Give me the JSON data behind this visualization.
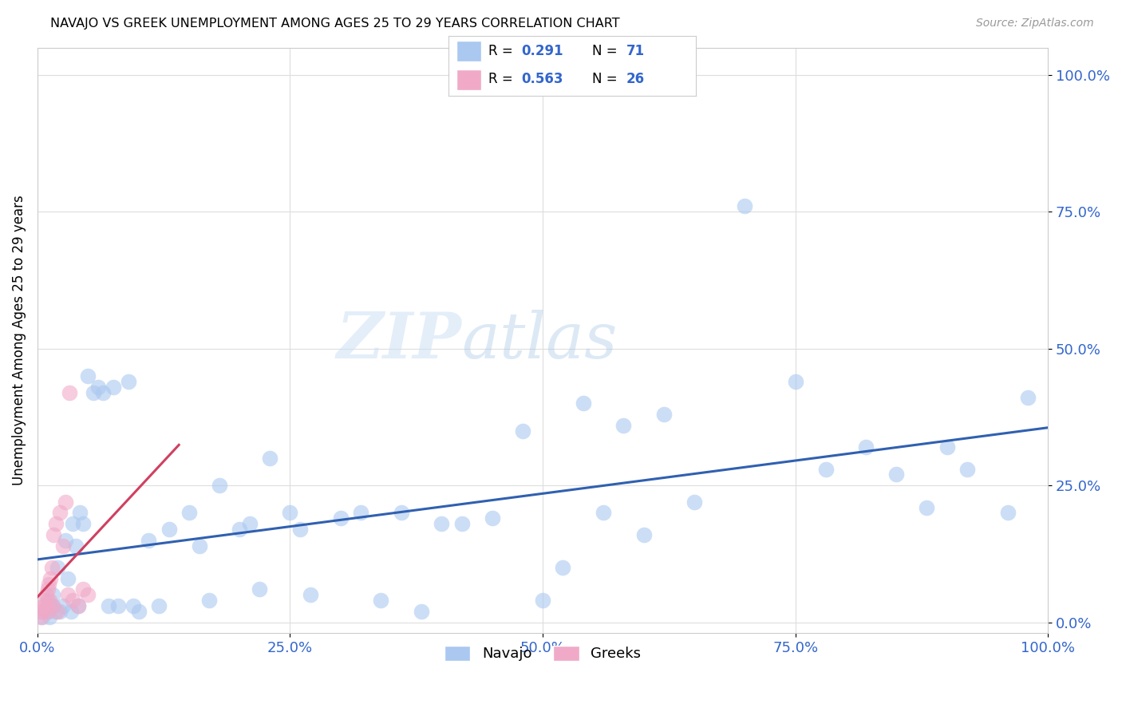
{
  "title": "NAVAJO VS GREEK UNEMPLOYMENT AMONG AGES 25 TO 29 YEARS CORRELATION CHART",
  "source": "Source: ZipAtlas.com",
  "ylabel": "Unemployment Among Ages 25 to 29 years",
  "xlim": [
    0.0,
    1.0
  ],
  "ylim": [
    -0.02,
    1.05
  ],
  "xticks": [
    0.0,
    0.25,
    0.5,
    0.75,
    1.0
  ],
  "yticks": [
    0.0,
    0.25,
    0.5,
    0.75,
    1.0
  ],
  "xtick_labels": [
    "0.0%",
    "25.0%",
    "50.0%",
    "75.0%",
    "100.0%"
  ],
  "ytick_labels": [
    "0.0%",
    "25.0%",
    "50.0%",
    "75.0%",
    "100.0%"
  ],
  "navajo_R": 0.291,
  "navajo_N": 71,
  "greek_R": 0.563,
  "greek_N": 26,
  "navajo_color": "#aac8f0",
  "greek_color": "#f0aac8",
  "navajo_line_color": "#3060b0",
  "greek_line_color": "#d04060",
  "watermark_zip": "ZIP",
  "watermark_atlas": "atlas",
  "navajo_x": [
    0.005,
    0.008,
    0.01,
    0.01,
    0.012,
    0.013,
    0.015,
    0.015,
    0.018,
    0.02,
    0.022,
    0.025,
    0.028,
    0.03,
    0.033,
    0.035,
    0.038,
    0.04,
    0.042,
    0.045,
    0.05,
    0.055,
    0.06,
    0.065,
    0.07,
    0.075,
    0.08,
    0.09,
    0.095,
    0.1,
    0.11,
    0.12,
    0.13,
    0.15,
    0.16,
    0.17,
    0.18,
    0.2,
    0.21,
    0.22,
    0.23,
    0.25,
    0.26,
    0.27,
    0.3,
    0.32,
    0.34,
    0.36,
    0.38,
    0.4,
    0.42,
    0.45,
    0.48,
    0.5,
    0.52,
    0.54,
    0.56,
    0.58,
    0.6,
    0.62,
    0.65,
    0.7,
    0.75,
    0.78,
    0.82,
    0.85,
    0.88,
    0.9,
    0.92,
    0.96,
    0.98
  ],
  "navajo_y": [
    0.01,
    0.02,
    0.02,
    0.04,
    0.01,
    0.03,
    0.03,
    0.05,
    0.02,
    0.1,
    0.02,
    0.03,
    0.15,
    0.08,
    0.02,
    0.18,
    0.14,
    0.03,
    0.2,
    0.18,
    0.45,
    0.42,
    0.43,
    0.42,
    0.03,
    0.43,
    0.03,
    0.44,
    0.03,
    0.02,
    0.15,
    0.03,
    0.17,
    0.2,
    0.14,
    0.04,
    0.25,
    0.17,
    0.18,
    0.06,
    0.3,
    0.2,
    0.17,
    0.05,
    0.19,
    0.2,
    0.04,
    0.2,
    0.02,
    0.18,
    0.18,
    0.19,
    0.35,
    0.04,
    0.1,
    0.4,
    0.2,
    0.36,
    0.16,
    0.38,
    0.22,
    0.76,
    0.44,
    0.28,
    0.32,
    0.27,
    0.21,
    0.32,
    0.28,
    0.2,
    0.41
  ],
  "greek_x": [
    0.003,
    0.004,
    0.005,
    0.006,
    0.007,
    0.008,
    0.009,
    0.01,
    0.01,
    0.011,
    0.012,
    0.013,
    0.014,
    0.015,
    0.016,
    0.018,
    0.02,
    0.022,
    0.025,
    0.028,
    0.03,
    0.032,
    0.035,
    0.04,
    0.045,
    0.05
  ],
  "greek_y": [
    0.01,
    0.02,
    0.02,
    0.03,
    0.03,
    0.04,
    0.05,
    0.02,
    0.06,
    0.07,
    0.04,
    0.08,
    0.1,
    0.03,
    0.16,
    0.18,
    0.02,
    0.2,
    0.14,
    0.22,
    0.05,
    0.42,
    0.04,
    0.03,
    0.06,
    0.05
  ],
  "greek_dash_color": "#d8a0b0",
  "navajo_legend_label": "Navajo",
  "greek_legend_label": "Greeks"
}
